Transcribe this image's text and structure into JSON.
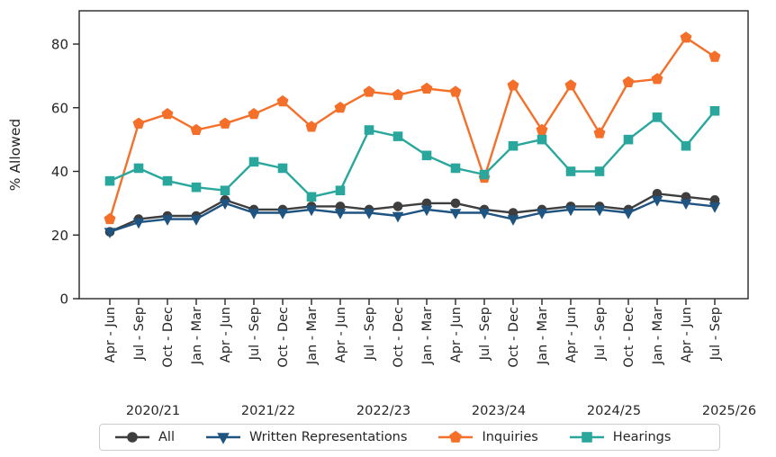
{
  "chart_data": {
    "type": "line",
    "title": "",
    "ylabel": "% Allowed",
    "ylim": [
      0,
      90
    ],
    "yticks": [
      0,
      20,
      40,
      60,
      80
    ],
    "grid": false,
    "legend_position": "bottom",
    "categories": [
      "Apr - Jun",
      "Jul - Sep",
      "Oct - Dec",
      "Jan - Mar",
      "Apr - Jun",
      "Jul - Sep",
      "Oct - Dec",
      "Jan - Mar",
      "Apr - Jun",
      "Jul - Sep",
      "Oct - Dec",
      "Jan - Mar",
      "Apr - Jun",
      "Jul - Sep",
      "Oct - Dec",
      "Jan - Mar",
      "Apr - Jun",
      "Jul - Sep",
      "Oct - Dec",
      "Jan - Mar",
      "Apr - Jun",
      "Jul - Sep"
    ],
    "year_labels": [
      "2020/21",
      "2021/22",
      "2022/23",
      "2023/24",
      "2024/25",
      "2025/26"
    ],
    "series": [
      {
        "name": "All",
        "marker": "circle",
        "color": "#3e3e3e",
        "values": [
          21,
          25,
          26,
          26,
          31,
          28,
          28,
          29,
          29,
          28,
          29,
          30,
          30,
          28,
          27,
          28,
          29,
          29,
          28,
          33,
          32,
          31
        ]
      },
      {
        "name": "Written Representations",
        "marker": "triangle-down",
        "color": "#1f5380",
        "values": [
          21,
          24,
          25,
          25,
          30,
          27,
          27,
          28,
          27,
          27,
          26,
          28,
          27,
          27,
          25,
          27,
          28,
          28,
          27,
          31,
          30,
          29
        ]
      },
      {
        "name": "Inquiries",
        "marker": "pentagon",
        "color": "#f4702a",
        "values": [
          25,
          55,
          58,
          53,
          55,
          58,
          62,
          54,
          60,
          65,
          64,
          66,
          65,
          38,
          67,
          53,
          67,
          52,
          68,
          69,
          82,
          76
        ]
      },
      {
        "name": "Hearings",
        "marker": "square",
        "color": "#2aa79c",
        "values": [
          37,
          41,
          37,
          35,
          34,
          43,
          41,
          32,
          34,
          53,
          51,
          45,
          41,
          39,
          48,
          50,
          40,
          40,
          50,
          57,
          48,
          59
        ]
      }
    ]
  }
}
